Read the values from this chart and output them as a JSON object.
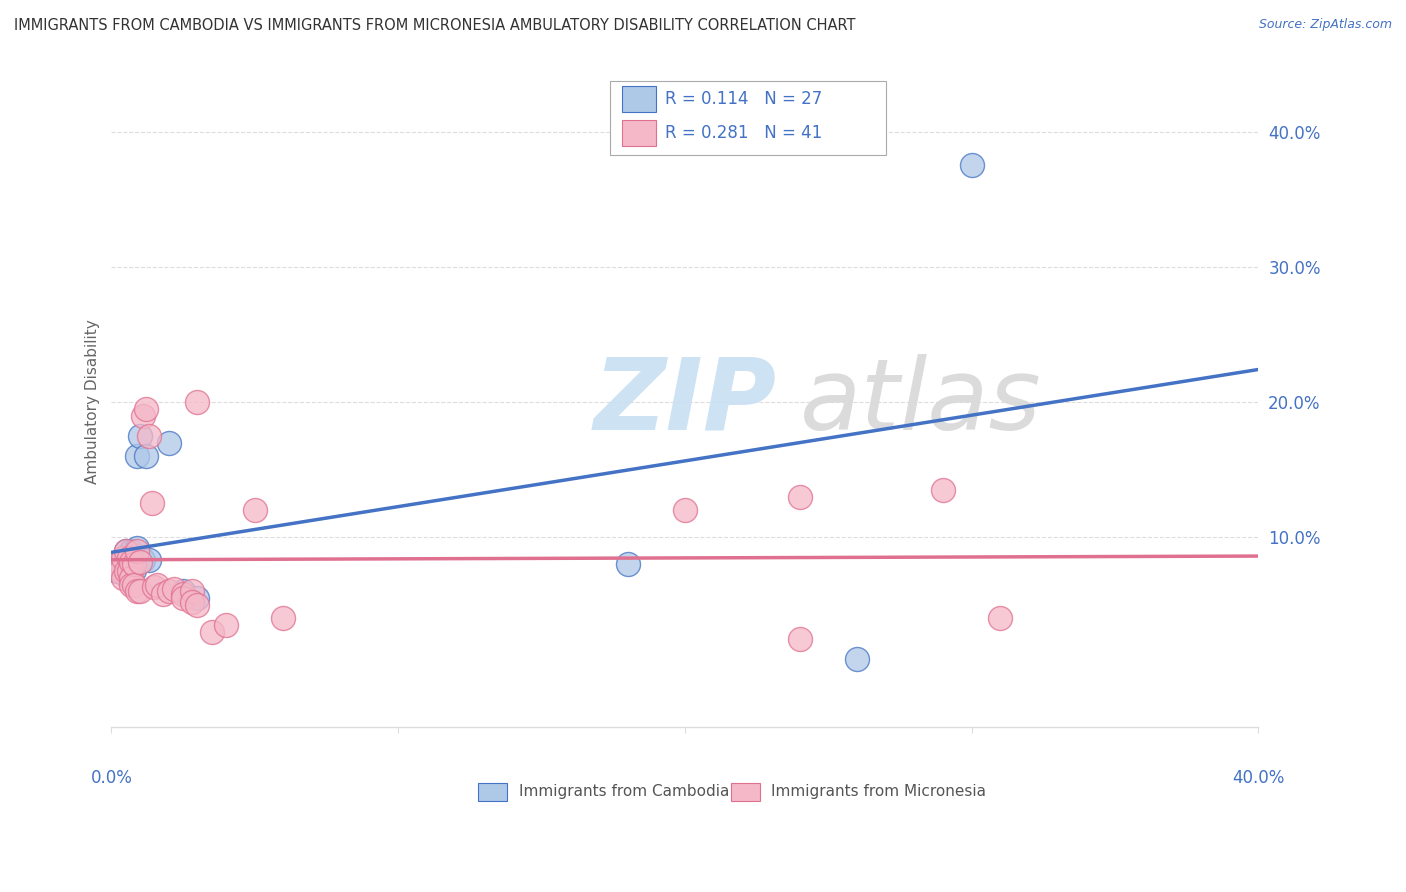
{
  "title": "IMMIGRANTS FROM CAMBODIA VS IMMIGRANTS FROM MICRONESIA AMBULATORY DISABILITY CORRELATION CHART",
  "source": "Source: ZipAtlas.com",
  "ylabel": "Ambulatory Disability",
  "right_ytick_vals": [
    0.4,
    0.3,
    0.2,
    0.1
  ],
  "right_ytick_labels": [
    "40.0%",
    "30.0%",
    "20.0%",
    "10.0%"
  ],
  "xlim": [
    0.0,
    0.4
  ],
  "ylim": [
    -0.04,
    0.44
  ],
  "blue_fill": "#aec8e8",
  "blue_edge": "#4472c4",
  "blue_line": "#4472c4",
  "pink_fill": "#f4b8c8",
  "pink_edge": "#e07090",
  "pink_line": "#e07090",
  "grid_color": "#dddddd",
  "text_color": "#4472c4",
  "legend_r1": "R = 0.114",
  "legend_n1": "N = 27",
  "legend_r2": "R = 0.281",
  "legend_n2": "N = 41",
  "cambodia_x": [
    0.002,
    0.003,
    0.004,
    0.004,
    0.005,
    0.005,
    0.005,
    0.006,
    0.006,
    0.006,
    0.007,
    0.007,
    0.007,
    0.008,
    0.008,
    0.009,
    0.009,
    0.01,
    0.011,
    0.012,
    0.013,
    0.02,
    0.025,
    0.03,
    0.18,
    0.26,
    0.3
  ],
  "cambodia_y": [
    0.075,
    0.08,
    0.082,
    0.078,
    0.09,
    0.085,
    0.072,
    0.088,
    0.075,
    0.083,
    0.09,
    0.083,
    0.078,
    0.087,
    0.076,
    0.16,
    0.092,
    0.175,
    0.083,
    0.16,
    0.083,
    0.17,
    0.06,
    0.055,
    0.08,
    0.01,
    0.375
  ],
  "micronesia_x": [
    0.002,
    0.003,
    0.004,
    0.004,
    0.005,
    0.005,
    0.006,
    0.006,
    0.007,
    0.007,
    0.007,
    0.008,
    0.008,
    0.009,
    0.009,
    0.01,
    0.01,
    0.011,
    0.012,
    0.013,
    0.014,
    0.015,
    0.016,
    0.018,
    0.02,
    0.022,
    0.025,
    0.025,
    0.028,
    0.028,
    0.03,
    0.03,
    0.035,
    0.04,
    0.05,
    0.06,
    0.2,
    0.24,
    0.24,
    0.29,
    0.31
  ],
  "micronesia_y": [
    0.08,
    0.075,
    0.085,
    0.07,
    0.09,
    0.075,
    0.085,
    0.075,
    0.082,
    0.07,
    0.065,
    0.08,
    0.065,
    0.09,
    0.06,
    0.082,
    0.06,
    0.19,
    0.195,
    0.175,
    0.125,
    0.063,
    0.065,
    0.058,
    0.06,
    0.062,
    0.058,
    0.055,
    0.06,
    0.052,
    0.2,
    0.05,
    0.03,
    0.035,
    0.12,
    0.04,
    0.12,
    0.13,
    0.025,
    0.135,
    0.04
  ]
}
